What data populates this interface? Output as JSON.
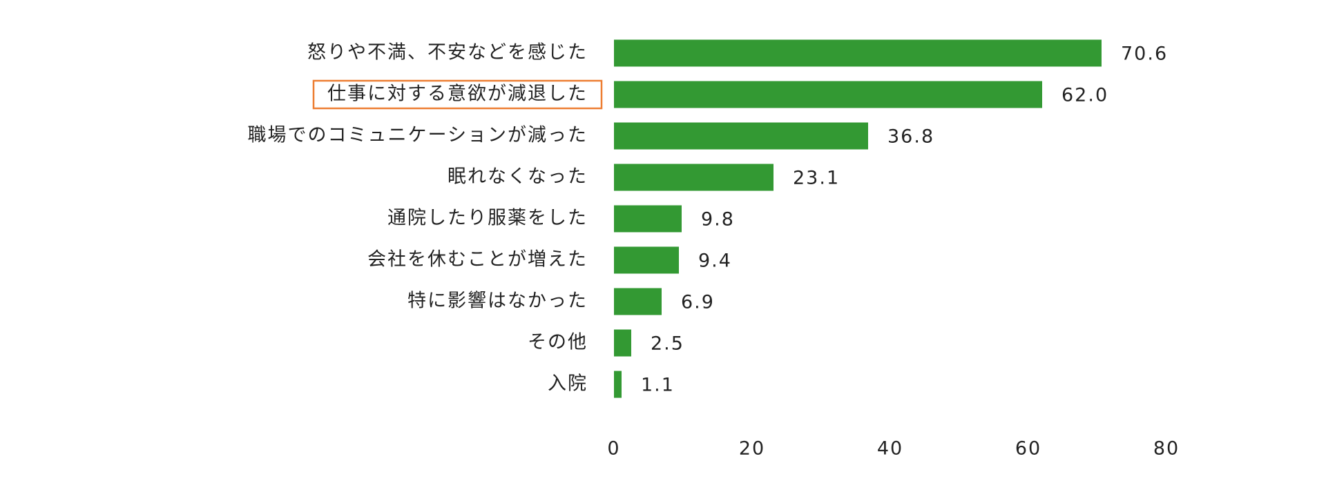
{
  "chart_data": {
    "type": "bar",
    "orientation": "horizontal",
    "categories": [
      "怒りや不満、不安などを感じた",
      "仕事に対する意欲が減退した",
      "職場でのコミュニケーションが減った",
      "眠れなくなった",
      "通院したり服薬をした",
      "会社を休むことが増えた",
      "特に影響はなかった",
      "その他",
      "入院"
    ],
    "values": [
      70.6,
      62.0,
      36.8,
      23.1,
      9.8,
      9.4,
      6.9,
      2.5,
      1.1
    ],
    "value_labels": [
      "70.6",
      "62.0",
      "36.8",
      "23.1",
      "9.8",
      "9.4",
      "6.9",
      "2.5",
      "1.1"
    ],
    "color": "#339933",
    "xlim": [
      0,
      80
    ],
    "xticks": [
      0,
      20,
      40,
      60,
      80
    ],
    "grid": false,
    "highlight_category": 1,
    "highlight_color": "#ed7d31"
  }
}
